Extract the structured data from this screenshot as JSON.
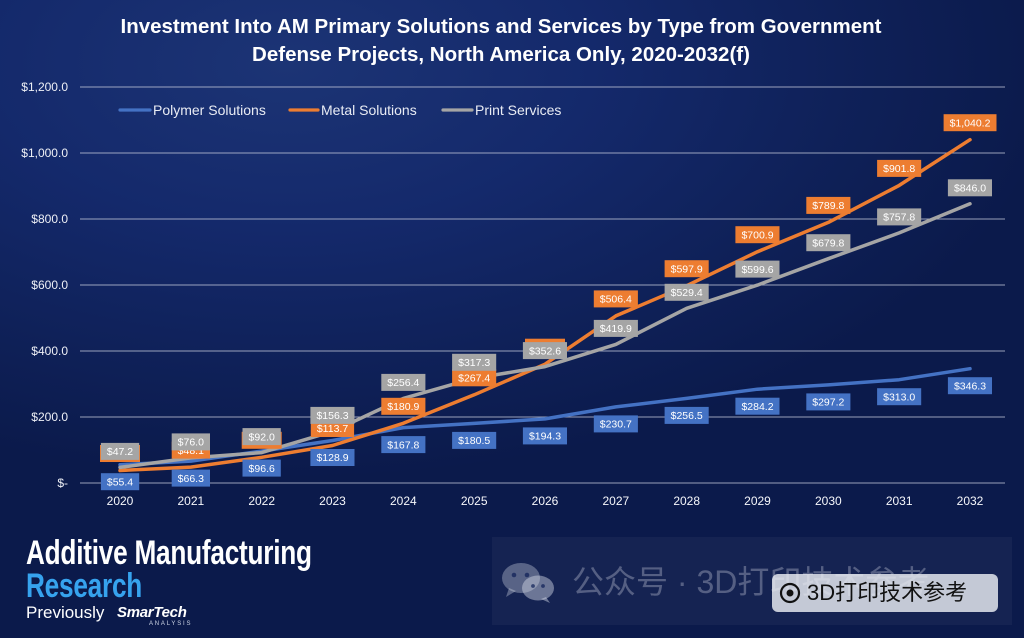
{
  "chart_data": {
    "type": "line",
    "title": "Investment Into AM Primary Solutions and Services by Type from Government Defense Projects, North America Only, 2020-2032(f)",
    "xlabel": "",
    "ylabel": "",
    "categories": [
      "2020",
      "2021",
      "2022",
      "2023",
      "2024",
      "2025",
      "2026",
      "2027",
      "2028",
      "2029",
      "2030",
      "2031",
      "2032"
    ],
    "ylim": [
      0,
      1200
    ],
    "yticks": [
      0,
      200,
      400,
      600,
      800,
      1000,
      1200
    ],
    "ytick_labels": [
      "$-",
      "$200.0",
      "$400.0",
      "$600.0",
      "$800.0",
      "$1,000.0",
      "$1,200.0"
    ],
    "grid": true,
    "series": [
      {
        "name": "Polymer Solutions",
        "color": "#4472c4",
        "values": [
          55.4,
          66.3,
          96.6,
          128.9,
          167.8,
          180.5,
          194.3,
          230.7,
          256.5,
          284.2,
          297.2,
          313.0,
          346.3
        ],
        "labels": [
          "$55.4",
          "$66.3",
          "$96.6",
          "$128.9",
          "$167.8",
          "$180.5",
          "$194.3",
          "$230.7",
          "$256.5",
          "$284.2",
          "$297.2",
          "$313.0",
          "$346.3"
        ]
      },
      {
        "name": "Metal Solutions",
        "color": "#ed7d31",
        "values": [
          38,
          48.1,
          78,
          113.7,
          180.9,
          267.4,
          360,
          506.4,
          597.9,
          700.9,
          789.8,
          901.8,
          1040.2
        ],
        "labels": [
          null,
          "$48.1",
          null,
          "$113.7",
          "$180.9",
          "$267.4",
          null,
          "$506.4",
          "$597.9",
          "$700.9",
          "$789.8",
          "$901.8",
          "$1,040.2"
        ]
      },
      {
        "name": "Print Services",
        "color": "#a5a5a5",
        "values": [
          47.2,
          76.0,
          92.0,
          156.3,
          256.4,
          317.3,
          352.6,
          419.9,
          529.4,
          599.6,
          679.8,
          757.8,
          846.0
        ],
        "labels": [
          "$47.2",
          "$76.0",
          "$92.0",
          "$156.3",
          "$256.4",
          "$317.3",
          "$352.6",
          "$419.9",
          "$529.4",
          "$599.6",
          "$679.8",
          "$757.8",
          "$846.0"
        ]
      }
    ]
  },
  "branding": {
    "line1": "Additive Manufacturing",
    "line2": "Research",
    "previously": "Previously",
    "former_brand": "SmarTech",
    "former_brand_sub": "ANALYSIS",
    "accent_color": "#36a3ee"
  },
  "watermark": {
    "text": "公众号 · 3D打印技术参考",
    "badge_text": "3D打印技术参考",
    "icon": "wechat-icon",
    "badge_icon": "official-account-icon"
  }
}
